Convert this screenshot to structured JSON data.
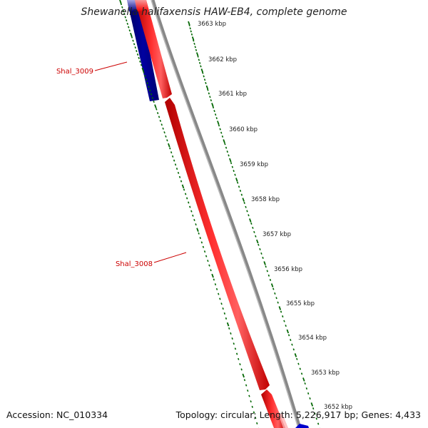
{
  "header": {
    "title": "Shewanella halifaxensis HAW-EB4, complete genome"
  },
  "footer": {
    "accession_label": "Accession: NC_010334",
    "info": "Topology: circular; Length: 5,226,917 bp; Genes: 4,433"
  },
  "scale_ticks": [
    {
      "label": "3663 kbp"
    },
    {
      "label": "3662 kbp"
    },
    {
      "label": "3661 kbp"
    },
    {
      "label": "3660 kbp"
    },
    {
      "label": "3659 kbp"
    },
    {
      "label": "3658 kbp"
    },
    {
      "label": "3657 kbp"
    },
    {
      "label": "3656 kbp"
    },
    {
      "label": "3655 kbp"
    },
    {
      "label": "3654 kbp"
    },
    {
      "label": "3653 kbp"
    },
    {
      "label": "3652 kbp"
    }
  ],
  "gene_labels": [
    {
      "name": "Shal_3009"
    },
    {
      "name": "Shal_3008"
    }
  ],
  "colors": {
    "forward_strand": "#ff0000",
    "reverse_strand": "#000080",
    "backbone": "#888888",
    "ticks": "#006600",
    "gene_label": "#cc0000"
  }
}
